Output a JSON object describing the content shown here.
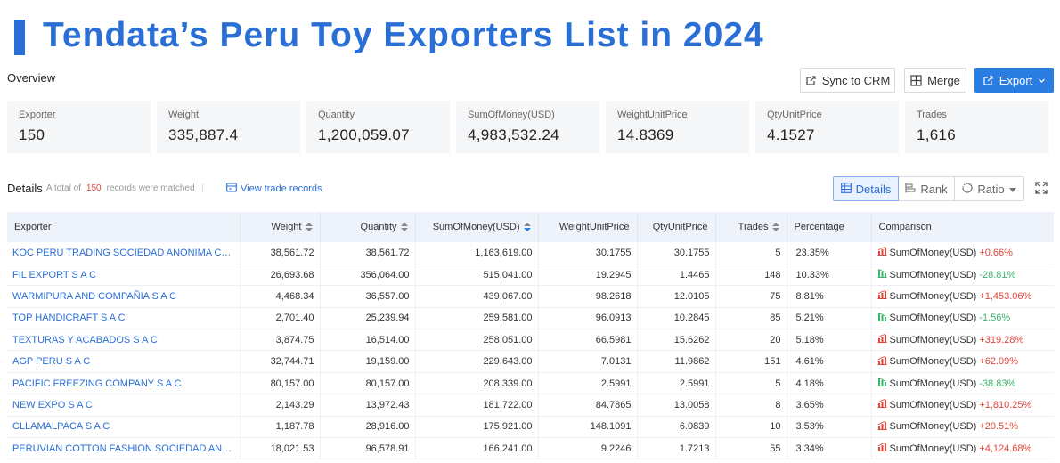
{
  "page": {
    "title": "Tendata’s Peru Toy Exporters List in 2024"
  },
  "overview": {
    "label": "Overview",
    "buttons": {
      "sync": "Sync to CRM",
      "merge": "Merge",
      "export": "Export"
    },
    "stats": [
      {
        "label": "Exporter",
        "value": "150"
      },
      {
        "label": "Weight",
        "value": "335,887.4"
      },
      {
        "label": "Quantity",
        "value": "1,200,059.07"
      },
      {
        "label": "SumOfMoney(USD)",
        "value": "4,983,532.24"
      },
      {
        "label": "WeightUnitPrice",
        "value": "14.8369"
      },
      {
        "label": "QtyUnitPrice",
        "value": "4.1527"
      },
      {
        "label": "Trades",
        "value": "1,616"
      }
    ]
  },
  "details": {
    "label": "Details",
    "matched_prefix": "A total of",
    "matched_count": "150",
    "matched_suffix": "records were matched",
    "view_records": "View trade records",
    "views": {
      "details": "Details",
      "rank": "Rank",
      "ratio": "Ratio"
    },
    "columns": [
      "Exporter",
      "Weight",
      "Quantity",
      "SumOfMoney(USD)",
      "WeightUnitPrice",
      "QtyUnitPrice",
      "Trades",
      "Percentage",
      "Comparison"
    ],
    "colors": {
      "accent": "#2a6fd6",
      "up": "#e0453a",
      "down": "#3db36b"
    },
    "rows": [
      {
        "exporter": "KOC PERU TRADING SOCIEDAD ANONIMA CERRADA...",
        "weight": "38,561.72",
        "quantity": "38,561.72",
        "money": "1,163,619.00",
        "wup": "30.1755",
        "qup": "30.1755",
        "trades": "5",
        "pct": "23.35%",
        "cmp_label": "SumOfMoney(USD)",
        "cmp_value": "+0.66%",
        "trend": "up"
      },
      {
        "exporter": "FIL EXPORT S A C",
        "weight": "26,693.68",
        "quantity": "356,064.00",
        "money": "515,041.00",
        "wup": "19.2945",
        "qup": "1.4465",
        "trades": "148",
        "pct": "10.33%",
        "cmp_label": "SumOfMoney(USD)",
        "cmp_value": "-28.81%",
        "trend": "down"
      },
      {
        "exporter": "WARMIPURA AND COMPAÑIA S A C",
        "weight": "4,468.34",
        "quantity": "36,557.00",
        "money": "439,067.00",
        "wup": "98.2618",
        "qup": "12.0105",
        "trades": "75",
        "pct": "8.81%",
        "cmp_label": "SumOfMoney(USD)",
        "cmp_value": "+1,453.06%",
        "trend": "up"
      },
      {
        "exporter": "TOP HANDICRAFT S A C",
        "weight": "2,701.40",
        "quantity": "25,239.94",
        "money": "259,581.00",
        "wup": "96.0913",
        "qup": "10.2845",
        "trades": "85",
        "pct": "5.21%",
        "cmp_label": "SumOfMoney(USD)",
        "cmp_value": "-1.56%",
        "trend": "down"
      },
      {
        "exporter": "TEXTURAS Y ACABADOS S A C",
        "weight": "3,874.75",
        "quantity": "16,514.00",
        "money": "258,051.00",
        "wup": "66.5981",
        "qup": "15.6262",
        "trades": "20",
        "pct": "5.18%",
        "cmp_label": "SumOfMoney(USD)",
        "cmp_value": "+319.28%",
        "trend": "up"
      },
      {
        "exporter": "AGP PERU S A C",
        "weight": "32,744.71",
        "quantity": "19,159.00",
        "money": "229,643.00",
        "wup": "7.0131",
        "qup": "11.9862",
        "trades": "151",
        "pct": "4.61%",
        "cmp_label": "SumOfMoney(USD)",
        "cmp_value": "+62.09%",
        "trend": "up"
      },
      {
        "exporter": "PACIFIC FREEZING COMPANY S A C",
        "weight": "80,157.00",
        "quantity": "80,157.00",
        "money": "208,339.00",
        "wup": "2.5991",
        "qup": "2.5991",
        "trades": "5",
        "pct": "4.18%",
        "cmp_label": "SumOfMoney(USD)",
        "cmp_value": "-38.83%",
        "trend": "down"
      },
      {
        "exporter": "NEW EXPO S A C",
        "weight": "2,143.29",
        "quantity": "13,972.43",
        "money": "181,722.00",
        "wup": "84.7865",
        "qup": "13.0058",
        "trades": "8",
        "pct": "3.65%",
        "cmp_label": "SumOfMoney(USD)",
        "cmp_value": "+1,810.25%",
        "trend": "up"
      },
      {
        "exporter": "CLLAMALPACA S A C",
        "weight": "1,187.78",
        "quantity": "28,916.00",
        "money": "175,921.00",
        "wup": "148.1091",
        "qup": "6.0839",
        "trades": "10",
        "pct": "3.53%",
        "cmp_label": "SumOfMoney(USD)",
        "cmp_value": "+20.51%",
        "trend": "up"
      },
      {
        "exporter": "PERUVIAN COTTON FASHION SOCIEDAD ANONIMA ...",
        "weight": "18,021.53",
        "quantity": "96,578.91",
        "money": "166,241.00",
        "wup": "9.2246",
        "qup": "1.7213",
        "trades": "55",
        "pct": "3.34%",
        "cmp_label": "SumOfMoney(USD)",
        "cmp_value": "+4,124.68%",
        "trend": "up"
      }
    ]
  }
}
